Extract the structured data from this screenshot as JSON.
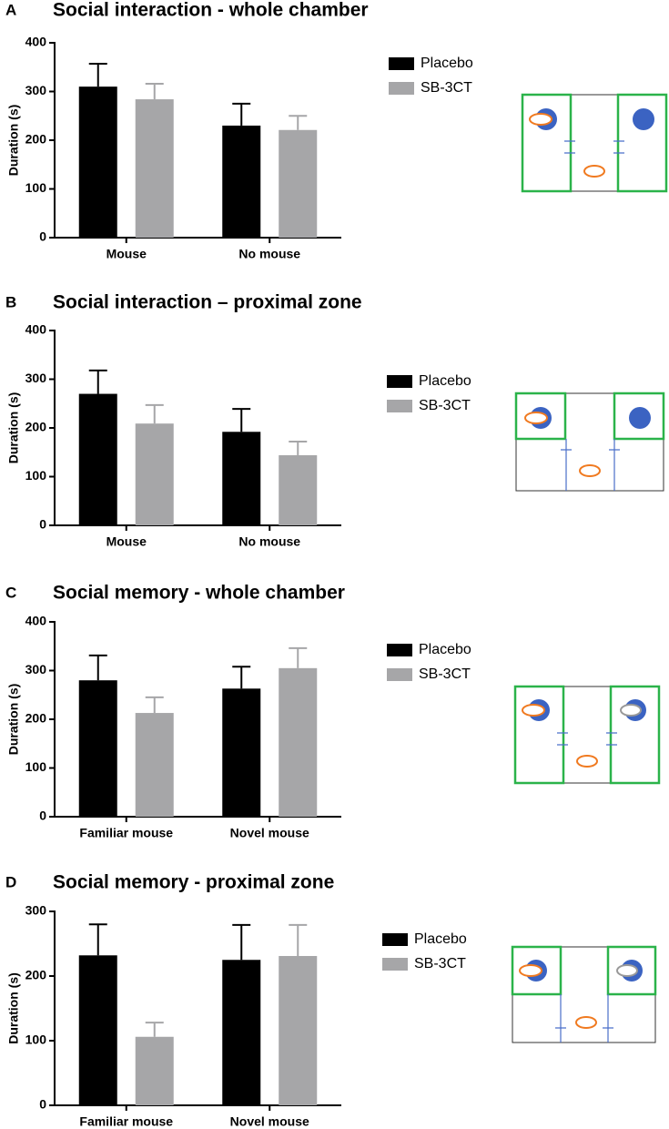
{
  "chart_data": [
    {
      "type": "bar",
      "label": "A",
      "title": "Social interaction - whole chamber",
      "y_label": "Duration (s)",
      "categories": [
        "Mouse",
        "No mouse"
      ],
      "series": [
        {
          "name": "Placebo",
          "color": "#000000",
          "values": [
            310,
            230
          ],
          "errors": [
            47,
            45
          ]
        },
        {
          "name": "SB-3CT",
          "color": "#a6a6a8",
          "values": [
            284,
            221
          ],
          "errors": [
            32,
            29
          ]
        }
      ],
      "ylim": [
        0,
        400
      ],
      "yticks": [
        0,
        100,
        200,
        300,
        400
      ]
    },
    {
      "type": "bar",
      "label": "B",
      "title": "Social interaction – proximal zone",
      "y_label": "Duration (s)",
      "categories": [
        "Mouse",
        "No mouse"
      ],
      "series": [
        {
          "name": "Placebo",
          "color": "#000000",
          "values": [
            270,
            192
          ],
          "errors": [
            48,
            47
          ]
        },
        {
          "name": "SB-3CT",
          "color": "#a6a6a8",
          "values": [
            209,
            144
          ],
          "errors": [
            38,
            28
          ]
        }
      ],
      "ylim": [
        0,
        400
      ],
      "yticks": [
        0,
        100,
        200,
        300,
        400
      ]
    },
    {
      "type": "bar",
      "label": "C",
      "title": "Social memory - whole chamber",
      "y_label": "Duration (s)",
      "categories": [
        "Familiar mouse",
        "Novel mouse"
      ],
      "series": [
        {
          "name": "Placebo",
          "color": "#000000",
          "values": [
            280,
            263
          ],
          "errors": [
            51,
            45
          ]
        },
        {
          "name": "SB-3CT",
          "color": "#a6a6a8",
          "values": [
            213,
            305
          ],
          "errors": [
            32,
            41
          ]
        }
      ],
      "ylim": [
        0,
        400
      ],
      "yticks": [
        0,
        100,
        200,
        300,
        400
      ]
    },
    {
      "type": "bar",
      "label": "D",
      "title": "Social memory - proximal zone",
      "y_label": "Duration (s)",
      "categories": [
        "Familiar mouse",
        "Novel mouse"
      ],
      "series": [
        {
          "name": "Placebo",
          "color": "#000000",
          "values": [
            232,
            225
          ],
          "errors": [
            48,
            54
          ]
        },
        {
          "name": "SB-3CT",
          "color": "#a6a6a8",
          "values": [
            106,
            231
          ],
          "errors": [
            22,
            48
          ]
        }
      ],
      "ylim": [
        0,
        300
      ],
      "yticks": [
        0,
        100,
        200,
        300
      ]
    }
  ]
}
